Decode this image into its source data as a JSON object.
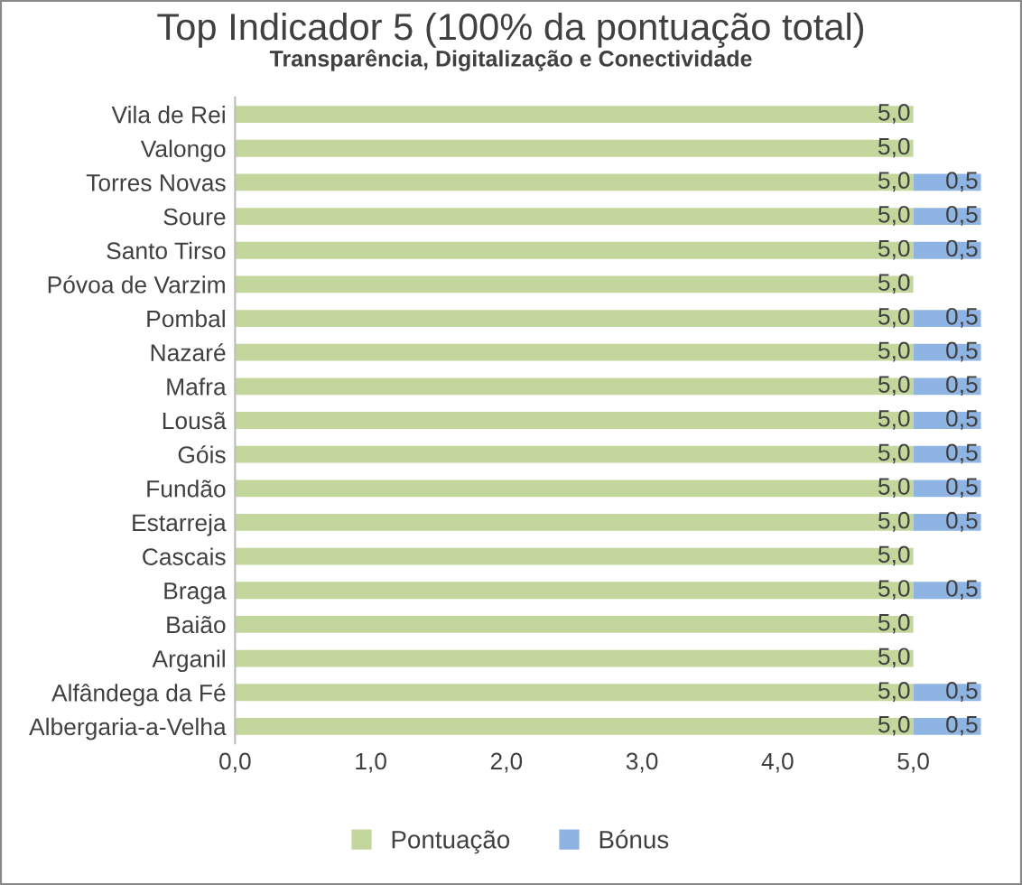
{
  "chart_data": {
    "type": "bar",
    "orientation": "horizontal",
    "stacked": true,
    "title": "Top Indicador 5 (100% da pontuação total)",
    "subtitle": "Transparência, Digitalização e Conectividade",
    "categories": [
      "Vila de Rei",
      "Valongo",
      "Torres Novas",
      "Soure",
      "Santo Tirso",
      "Póvoa de Varzim",
      "Pombal",
      "Nazaré",
      "Mafra",
      "Lousã",
      "Góis",
      "Fundão",
      "Estarreja",
      "Cascais",
      "Braga",
      "Baião",
      "Arganil",
      "Alfândega da Fé",
      "Albergaria-a-Velha"
    ],
    "series": [
      {
        "name": "Pontuação",
        "color": "#c3d69b",
        "values": [
          5.0,
          5.0,
          5.0,
          5.0,
          5.0,
          5.0,
          5.0,
          5.0,
          5.0,
          5.0,
          5.0,
          5.0,
          5.0,
          5.0,
          5.0,
          5.0,
          5.0,
          5.0,
          5.0
        ],
        "value_labels": [
          "5,0",
          "5,0",
          "5,0",
          "5,0",
          "5,0",
          "5,0",
          "5,0",
          "5,0",
          "5,0",
          "5,0",
          "5,0",
          "5,0",
          "5,0",
          "5,0",
          "5,0",
          "5,0",
          "5,0",
          "5,0",
          "5,0"
        ]
      },
      {
        "name": "Bónus",
        "color": "#8eb4e3",
        "values": [
          null,
          null,
          0.5,
          0.5,
          0.5,
          null,
          0.5,
          0.5,
          0.5,
          0.5,
          0.5,
          0.5,
          0.5,
          null,
          0.5,
          null,
          null,
          0.5,
          0.5
        ],
        "value_labels": [
          null,
          null,
          "0,5",
          "0,5",
          "0,5",
          null,
          "0,5",
          "0,5",
          "0,5",
          "0,5",
          "0,5",
          "0,5",
          "0,5",
          null,
          "0,5",
          null,
          null,
          "0,5",
          "0,5"
        ]
      }
    ],
    "xlim": [
      0,
      5.5
    ],
    "xticks": [
      {
        "value": 0,
        "label": "0,0"
      },
      {
        "value": 1,
        "label": "1,0"
      },
      {
        "value": 2,
        "label": "2,0"
      },
      {
        "value": 3,
        "label": "3,0"
      },
      {
        "value": 4,
        "label": "4,0"
      },
      {
        "value": 5,
        "label": "5,0"
      }
    ],
    "grid": false,
    "legend": "bottom"
  }
}
